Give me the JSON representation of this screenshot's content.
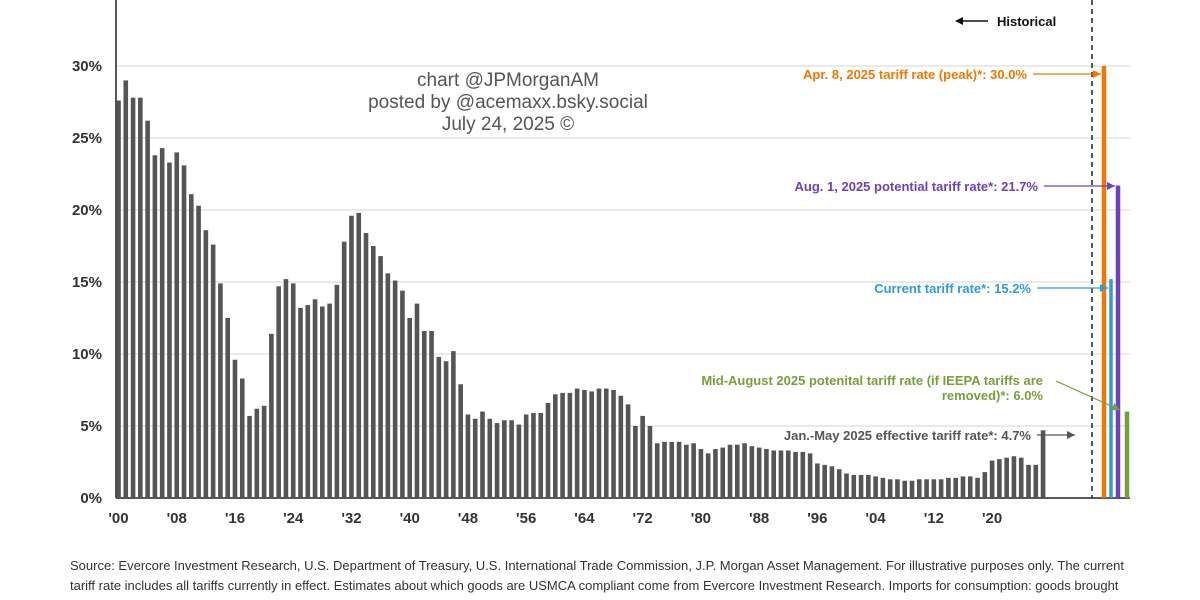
{
  "chart_data": {
    "type": "bar",
    "ylim": [
      0,
      30
    ],
    "y_ticks": [
      0,
      5,
      10,
      15,
      20,
      25,
      30
    ],
    "y_tick_labels": [
      "0%",
      "5%",
      "10%",
      "15%",
      "20%",
      "25%",
      "30%"
    ],
    "x_tick_years": [
      1900,
      1908,
      1916,
      1924,
      1932,
      1940,
      1948,
      1956,
      1964,
      1972,
      1980,
      1988,
      1996,
      2004,
      2012,
      2020
    ],
    "x_tick_labels": [
      "'00",
      "'08",
      "'16",
      "'24",
      "'32",
      "'40",
      "'48",
      "'56",
      "'64",
      "'72",
      "'80",
      "'88",
      "'96",
      "'04",
      "'12",
      "'20"
    ],
    "grid": "horizontal",
    "historical": {
      "start_year": 1900,
      "color": "#555555",
      "values": [
        27.6,
        29.0,
        27.8,
        27.8,
        26.2,
        23.8,
        24.3,
        23.3,
        24.0,
        23.1,
        21.1,
        20.3,
        18.6,
        17.6,
        14.9,
        12.5,
        9.6,
        8.3,
        5.7,
        6.2,
        6.4,
        11.4,
        14.7,
        15.2,
        14.9,
        13.2,
        13.4,
        13.8,
        13.3,
        13.5,
        14.8,
        17.8,
        19.6,
        19.8,
        18.4,
        17.5,
        16.8,
        15.6,
        15.1,
        14.4,
        12.5,
        13.5,
        11.6,
        11.6,
        9.8,
        9.5,
        10.2,
        7.9,
        5.8,
        5.5,
        6.0,
        5.5,
        5.2,
        5.4,
        5.4,
        5.1,
        5.8,
        5.9,
        5.9,
        6.6,
        7.2,
        7.3,
        7.3,
        7.6,
        7.5,
        7.4,
        7.6,
        7.6,
        7.5,
        7.1,
        6.5,
        5.0,
        5.7,
        5.0,
        3.8,
        3.9,
        3.9,
        3.9,
        3.7,
        3.8,
        3.4,
        3.1,
        3.4,
        3.5,
        3.7,
        3.7,
        3.8,
        3.6,
        3.5,
        3.4,
        3.3,
        3.3,
        3.3,
        3.2,
        3.2,
        3.1,
        2.4,
        2.3,
        2.2,
        2.0,
        1.7,
        1.6,
        1.6,
        1.6,
        1.5,
        1.4,
        1.3,
        1.3,
        1.2,
        1.2,
        1.3,
        1.3,
        1.3,
        1.3,
        1.4,
        1.4,
        1.5,
        1.5,
        1.4,
        1.8,
        2.6,
        2.7,
        2.8,
        2.9,
        2.8,
        2.3,
        2.3,
        4.7
      ]
    },
    "scenarios": [
      {
        "label": "Apr. 8, 2025 tariff rate (peak)*: 30.0%",
        "value": 30.0,
        "color": "#F07800"
      },
      {
        "label": "Current tariff rate*: 15.2%",
        "value": 15.2,
        "color": "#2E9CE0"
      },
      {
        "label": "Aug. 1, 2025 potential tariff rate*: 21.7%",
        "value": 21.7,
        "color": "#6F3FBF"
      },
      {
        "label": "Mid-August 2025 potenital tariff rate (if IEEPA tariffs are removed)*: 6.0%",
        "label_lines": [
          "Mid-August 2025 potenital tariff rate (if IEEPA tariffs are",
          "removed)*: 6.0%"
        ],
        "value": 6.0,
        "color": "#77A03A"
      }
    ],
    "latest_annotation": {
      "label": "Jan.-May 2025 effective tariff rate*: 4.7%",
      "value": 4.7,
      "color": "#555555"
    },
    "historical_marker": {
      "label": "Historical"
    },
    "watermark": [
      "chart @JPMorganAM",
      "posted by @acemaxx.bsky.social",
      "July 24, 2025 ©"
    ]
  },
  "source": {
    "lines": [
      "Source: Evercore Investment Research, U.S. Department of Treasury, U.S. International Trade Commission, J.P. Morgan Asset Management. For illustrative purposes only. The current",
      "tariff rate includes all tariffs currently in effect. Estimates about which goods are USMCA compliant come from Evercore Investment Research. Imports for consumption: goods brought"
    ]
  }
}
